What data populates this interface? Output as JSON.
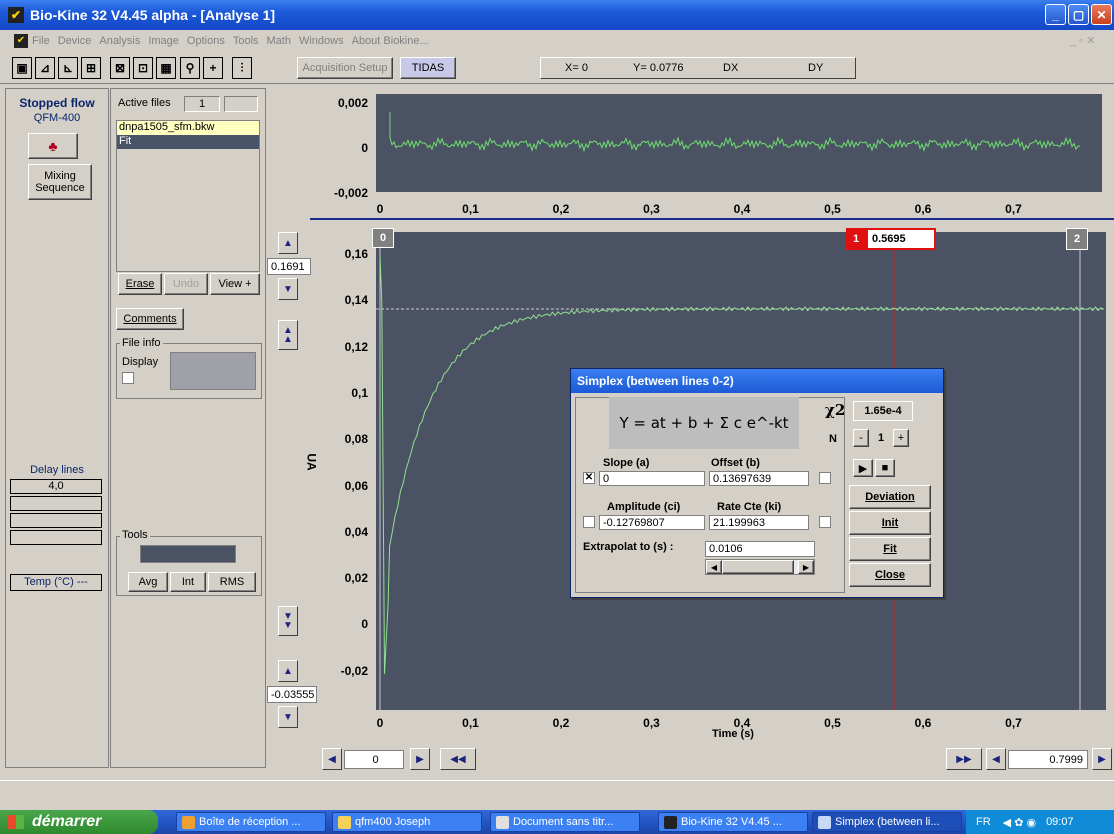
{
  "window": {
    "title": "Bio-Kine 32  V4.45 alpha - [Analyse 1]"
  },
  "menu": [
    "File",
    "Device",
    "Analysis",
    "Image",
    "Options",
    "Tools",
    "Math",
    "Windows",
    "About Biokine..."
  ],
  "toolbar": {
    "acquisition_setup": "Acquisition Setup",
    "tidas": "TIDAS",
    "x_readout": "X= 0",
    "y_readout": "Y= 0.0776",
    "dx": "DX",
    "dy": "DY"
  },
  "left_panel": {
    "mode_title": "Stopped flow",
    "device": "QFM-400",
    "mixing_label": "Mixing Sequence",
    "delay_lines_label": "Delay lines",
    "delay_value": "4,0",
    "temp_label": "Temp (°C) ---"
  },
  "files_panel": {
    "active_files_label": "Active files",
    "active_count": "1",
    "files": [
      "dnpa1505_sfm.bkw",
      "Fit"
    ],
    "erase": "Erase",
    "undo": "Undo",
    "view": "View +",
    "comments": "Comments",
    "file_info": "File info",
    "display": "Display",
    "tools": "Tools",
    "avg": "Avg",
    "int": "Int",
    "rms": "RMS"
  },
  "residual_plot": {
    "yticks": [
      "0,002",
      "0",
      "-0,002"
    ],
    "xticks": [
      "0",
      "0,1",
      "0,2",
      "0,3",
      "0,4",
      "0,5",
      "0,6",
      "0,7"
    ]
  },
  "main_plot": {
    "ylabel": "UA",
    "xlabel": "Time (s)",
    "yticks": [
      "0,16",
      "0,14",
      "0,12",
      "0,1",
      "0,08",
      "0,06",
      "0,04",
      "0,02",
      "0",
      "-0,02"
    ],
    "xticks": [
      "0",
      "0,1",
      "0,2",
      "0,3",
      "0,4",
      "0,5",
      "0,6",
      "0,7"
    ],
    "y_max_field": "0.1691",
    "y_min_field": "-0.03555",
    "cursor0": "0",
    "cursor1": "1",
    "cursor1_value": "0.5695",
    "cursor2": "2",
    "x_start_field": "0",
    "x_end_field": "0.7999"
  },
  "chart_data": {
    "type": "line",
    "title": "",
    "xlabel": "Time (s)",
    "ylabel": "UA",
    "xlim": [
      0,
      0.8
    ],
    "ylim": [
      -0.035,
      0.17
    ],
    "model": {
      "a": 0,
      "b": 0.13697639,
      "c": -0.12769807,
      "k": 21.199963
    },
    "x": [
      0.0106,
      0.03,
      0.05,
      0.07,
      0.1,
      0.13,
      0.16,
      0.2,
      0.25,
      0.3,
      0.4,
      0.5,
      0.6,
      0.7,
      0.8
    ],
    "values": [
      0.0297,
      0.0679,
      0.0928,
      0.1089,
      0.1229,
      0.1294,
      0.1338,
      0.1352,
      0.1363,
      0.1369,
      0.137,
      0.137,
      0.137,
      0.137,
      0.137
    ]
  },
  "dialog": {
    "title": "Simplex (between lines 0-2)",
    "formula": "Y = at + b + Σ c e^-kt",
    "chi2_label": "χ2",
    "chi2_value": "1.65e-4",
    "n_label": "N",
    "n_value": "1",
    "slope_label": "Slope (a)",
    "slope_value": "0",
    "offset_label": "Offset (b)",
    "offset_value": "0.13697639",
    "amplitude_label": "Amplitude (ci)",
    "amplitude_value": "-0.12769807",
    "rate_label": "Rate Cte (ki)",
    "rate_value": "21.199963",
    "extrapolat_label": "Extrapolat to (s) :",
    "extrapolat_value": "0.0106",
    "deviation": "Deviation",
    "init": "Init",
    "fit": "Fit",
    "close": "Close"
  },
  "taskbar": {
    "start": "démarrer",
    "tasks": [
      "Boîte de réception ...",
      "qfm400 Joseph",
      "Document sans titr...",
      "Bio-Kine 32  V4.45 ...",
      "Simplex (between li..."
    ],
    "lang": "FR",
    "clock": "09:07"
  }
}
